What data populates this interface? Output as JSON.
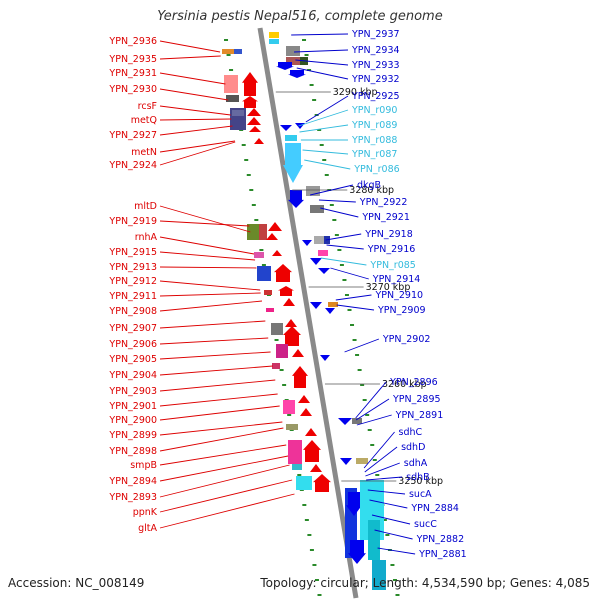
{
  "title": "Yersinia pestis Nepal516, complete genome",
  "footer": {
    "accession": "Accession: NC_008149",
    "summary": "Topology: circular; Length: 4,534,590 bp; Genes: 4,085"
  },
  "colors": {
    "left_label": "#dd0000",
    "right_label": "#0000cc",
    "rna_label": "#33bbdd",
    "backbone": "#888888",
    "minus_strand_arrow": "#0000ee",
    "plus_strand_arrow": "#ee0000",
    "rna_feature": "#33ccee"
  },
  "scale_ticks": [
    "3290 kbp",
    "3280 kbp",
    "3270 kbp",
    "3260 kbp",
    "3250 kbp"
  ],
  "left_labels": [
    "YPN_2936",
    "YPN_2935",
    "YPN_2931",
    "YPN_2930",
    "rcsF",
    "metQ",
    "YPN_2927",
    "metN",
    "YPN_2924",
    "mltD",
    "YPN_2919",
    "rnhA",
    "YPN_2915",
    "YPN_2913",
    "YPN_2912",
    "YPN_2911",
    "YPN_2908",
    "YPN_2907",
    "YPN_2906",
    "YPN_2905",
    "YPN_2904",
    "YPN_2903",
    "YPN_2901",
    "YPN_2900",
    "YPN_2899",
    "YPN_2898",
    "smpB",
    "YPN_2894",
    "YPN_2893",
    "ppnK",
    "gltA"
  ],
  "right_labels": [
    {
      "text": "YPN_2937",
      "type": "gene"
    },
    {
      "text": "YPN_2934",
      "type": "gene"
    },
    {
      "text": "YPN_2933",
      "type": "gene"
    },
    {
      "text": "YPN_2932",
      "type": "gene"
    },
    {
      "text": "YPN_2925",
      "type": "gene"
    },
    {
      "text": "YPN_r090",
      "type": "rna"
    },
    {
      "text": "YPN_r089",
      "type": "rna"
    },
    {
      "text": "YPN_r088",
      "type": "rna"
    },
    {
      "text": "YPN_r087",
      "type": "rna"
    },
    {
      "text": "YPN_r086",
      "type": "rna"
    },
    {
      "text": "dkgB",
      "type": "gene"
    },
    {
      "text": "YPN_2922",
      "type": "gene"
    },
    {
      "text": "YPN_2921",
      "type": "gene"
    },
    {
      "text": "YPN_2918",
      "type": "gene"
    },
    {
      "text": "YPN_2916",
      "type": "gene"
    },
    {
      "text": "YPN_r085",
      "type": "rna"
    },
    {
      "text": "YPN_2914",
      "type": "gene"
    },
    {
      "text": "YPN_2910",
      "type": "gene"
    },
    {
      "text": "YPN_2909",
      "type": "gene"
    },
    {
      "text": "YPN_2902",
      "type": "gene"
    },
    {
      "text": "YPN_2896",
      "type": "gene"
    },
    {
      "text": "YPN_2895",
      "type": "gene"
    },
    {
      "text": "YPN_2891",
      "type": "gene"
    },
    {
      "text": "sdhC",
      "type": "gene"
    },
    {
      "text": "sdhD",
      "type": "gene"
    },
    {
      "text": "sdhA",
      "type": "gene"
    },
    {
      "text": "sdhB",
      "type": "gene"
    },
    {
      "text": "sucA",
      "type": "gene"
    },
    {
      "text": "YPN_2884",
      "type": "gene"
    },
    {
      "text": "sucC",
      "type": "gene"
    },
    {
      "text": "YPN_2882",
      "type": "gene"
    },
    {
      "text": "YPN_2881",
      "type": "gene"
    }
  ]
}
